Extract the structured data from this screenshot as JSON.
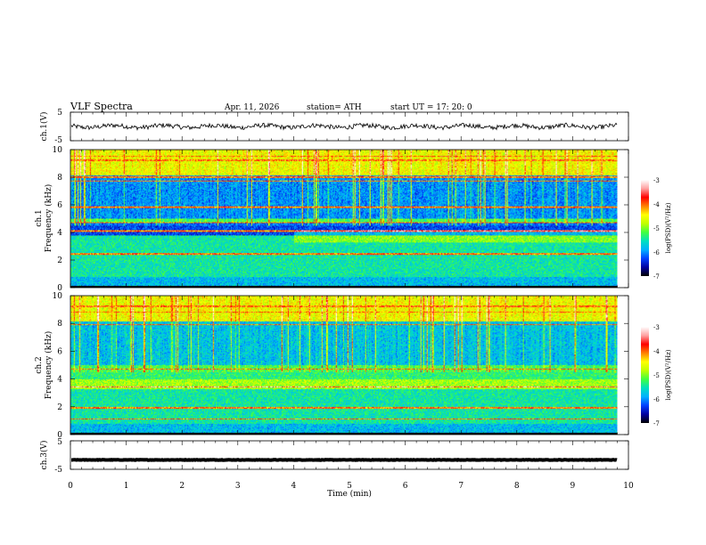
{
  "header": {
    "title": "VLF  Spectra",
    "date": "Apr. 11, 2026",
    "station": "station= ATH",
    "start": "start  UT  =    17: 20: 0"
  },
  "chart_data": {
    "type": "heatmap",
    "x_axis": {
      "label": "Time  (min)",
      "range": [
        0,
        10
      ],
      "ticks": [
        "0",
        "1",
        "2",
        "3",
        "4",
        "5",
        "6",
        "7",
        "8",
        "9",
        "10"
      ]
    },
    "panels": [
      {
        "id": "ch1_waveform",
        "type": "line",
        "ylabel": "ch.1(V)",
        "ylim": [
          -5,
          5
        ],
        "ticks": [
          "5",
          "-5"
        ],
        "baseline": 0,
        "data_end_min": 9.8
      },
      {
        "id": "ch1_spectrogram",
        "type": "heatmap",
        "ylabel_line1": "ch.1",
        "ylabel_line2": "Frequency  (kHz)",
        "ylim": [
          0,
          10
        ],
        "ticks": [
          "0",
          "2",
          "4",
          "6",
          "8",
          "10"
        ],
        "data_end_min": 9.8,
        "colorbar": {
          "label": "log(PSD)(V²/Hz)",
          "range": [
            -7,
            -3
          ],
          "ticks": [
            "-3",
            "-4",
            "-5",
            "-6",
            "-7"
          ]
        }
      },
      {
        "id": "ch2_spectrogram",
        "type": "heatmap",
        "ylabel_line1": "ch.2",
        "ylabel_line2": "Frequency  (kHz)",
        "ylim": [
          0,
          10
        ],
        "ticks": [
          "0",
          "2",
          "4",
          "6",
          "8",
          "10"
        ],
        "data_end_min": 9.8,
        "colorbar": {
          "label": "log(PSD)(V²/Hz)",
          "range": [
            -7,
            -3
          ],
          "ticks": [
            "-3",
            "-4",
            "-5",
            "-6",
            "-7"
          ]
        }
      },
      {
        "id": "ch3_waveform",
        "type": "line",
        "ylabel": "ch.3(V)",
        "ylim": [
          -5,
          5
        ],
        "ticks": [
          "5",
          "-5"
        ],
        "baseline": -1.7,
        "data_end_min": 9.8
      }
    ],
    "colormap": [
      "#000000",
      "#0000a0",
      "#0040ff",
      "#00b0ff",
      "#00e0c0",
      "#40ff40",
      "#c0ff00",
      "#ffff00",
      "#ff8000",
      "#ff0000",
      "#ffa0a0",
      "#ffffff"
    ]
  }
}
